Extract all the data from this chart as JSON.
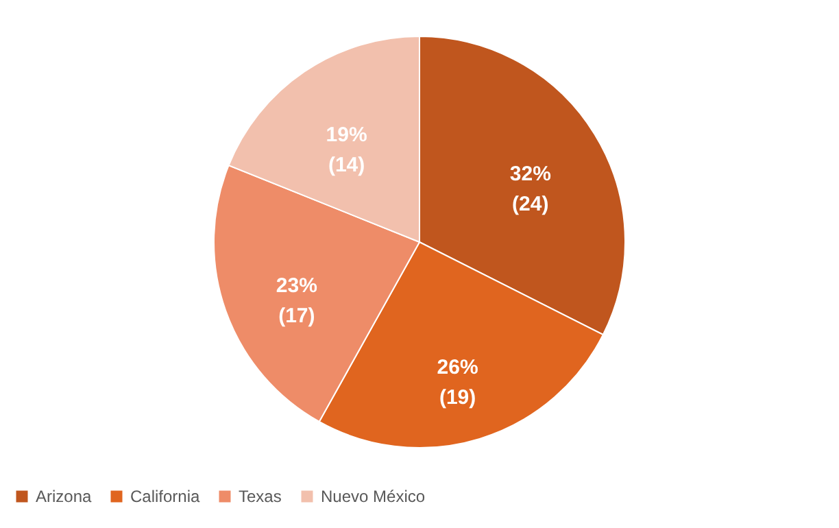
{
  "chart_data": {
    "type": "pie",
    "categories": [
      "Arizona",
      "California",
      "Texas",
      "Nuevo México"
    ],
    "values": [
      24,
      19,
      17,
      14
    ],
    "colors": [
      "#c0561e",
      "#e0651f",
      "#ee8c68",
      "#f2c0ad"
    ],
    "value_labels": [
      "32% (24)",
      "26% (19)",
      "23% (17)",
      "19% (14)"
    ],
    "legend": "bottom"
  }
}
